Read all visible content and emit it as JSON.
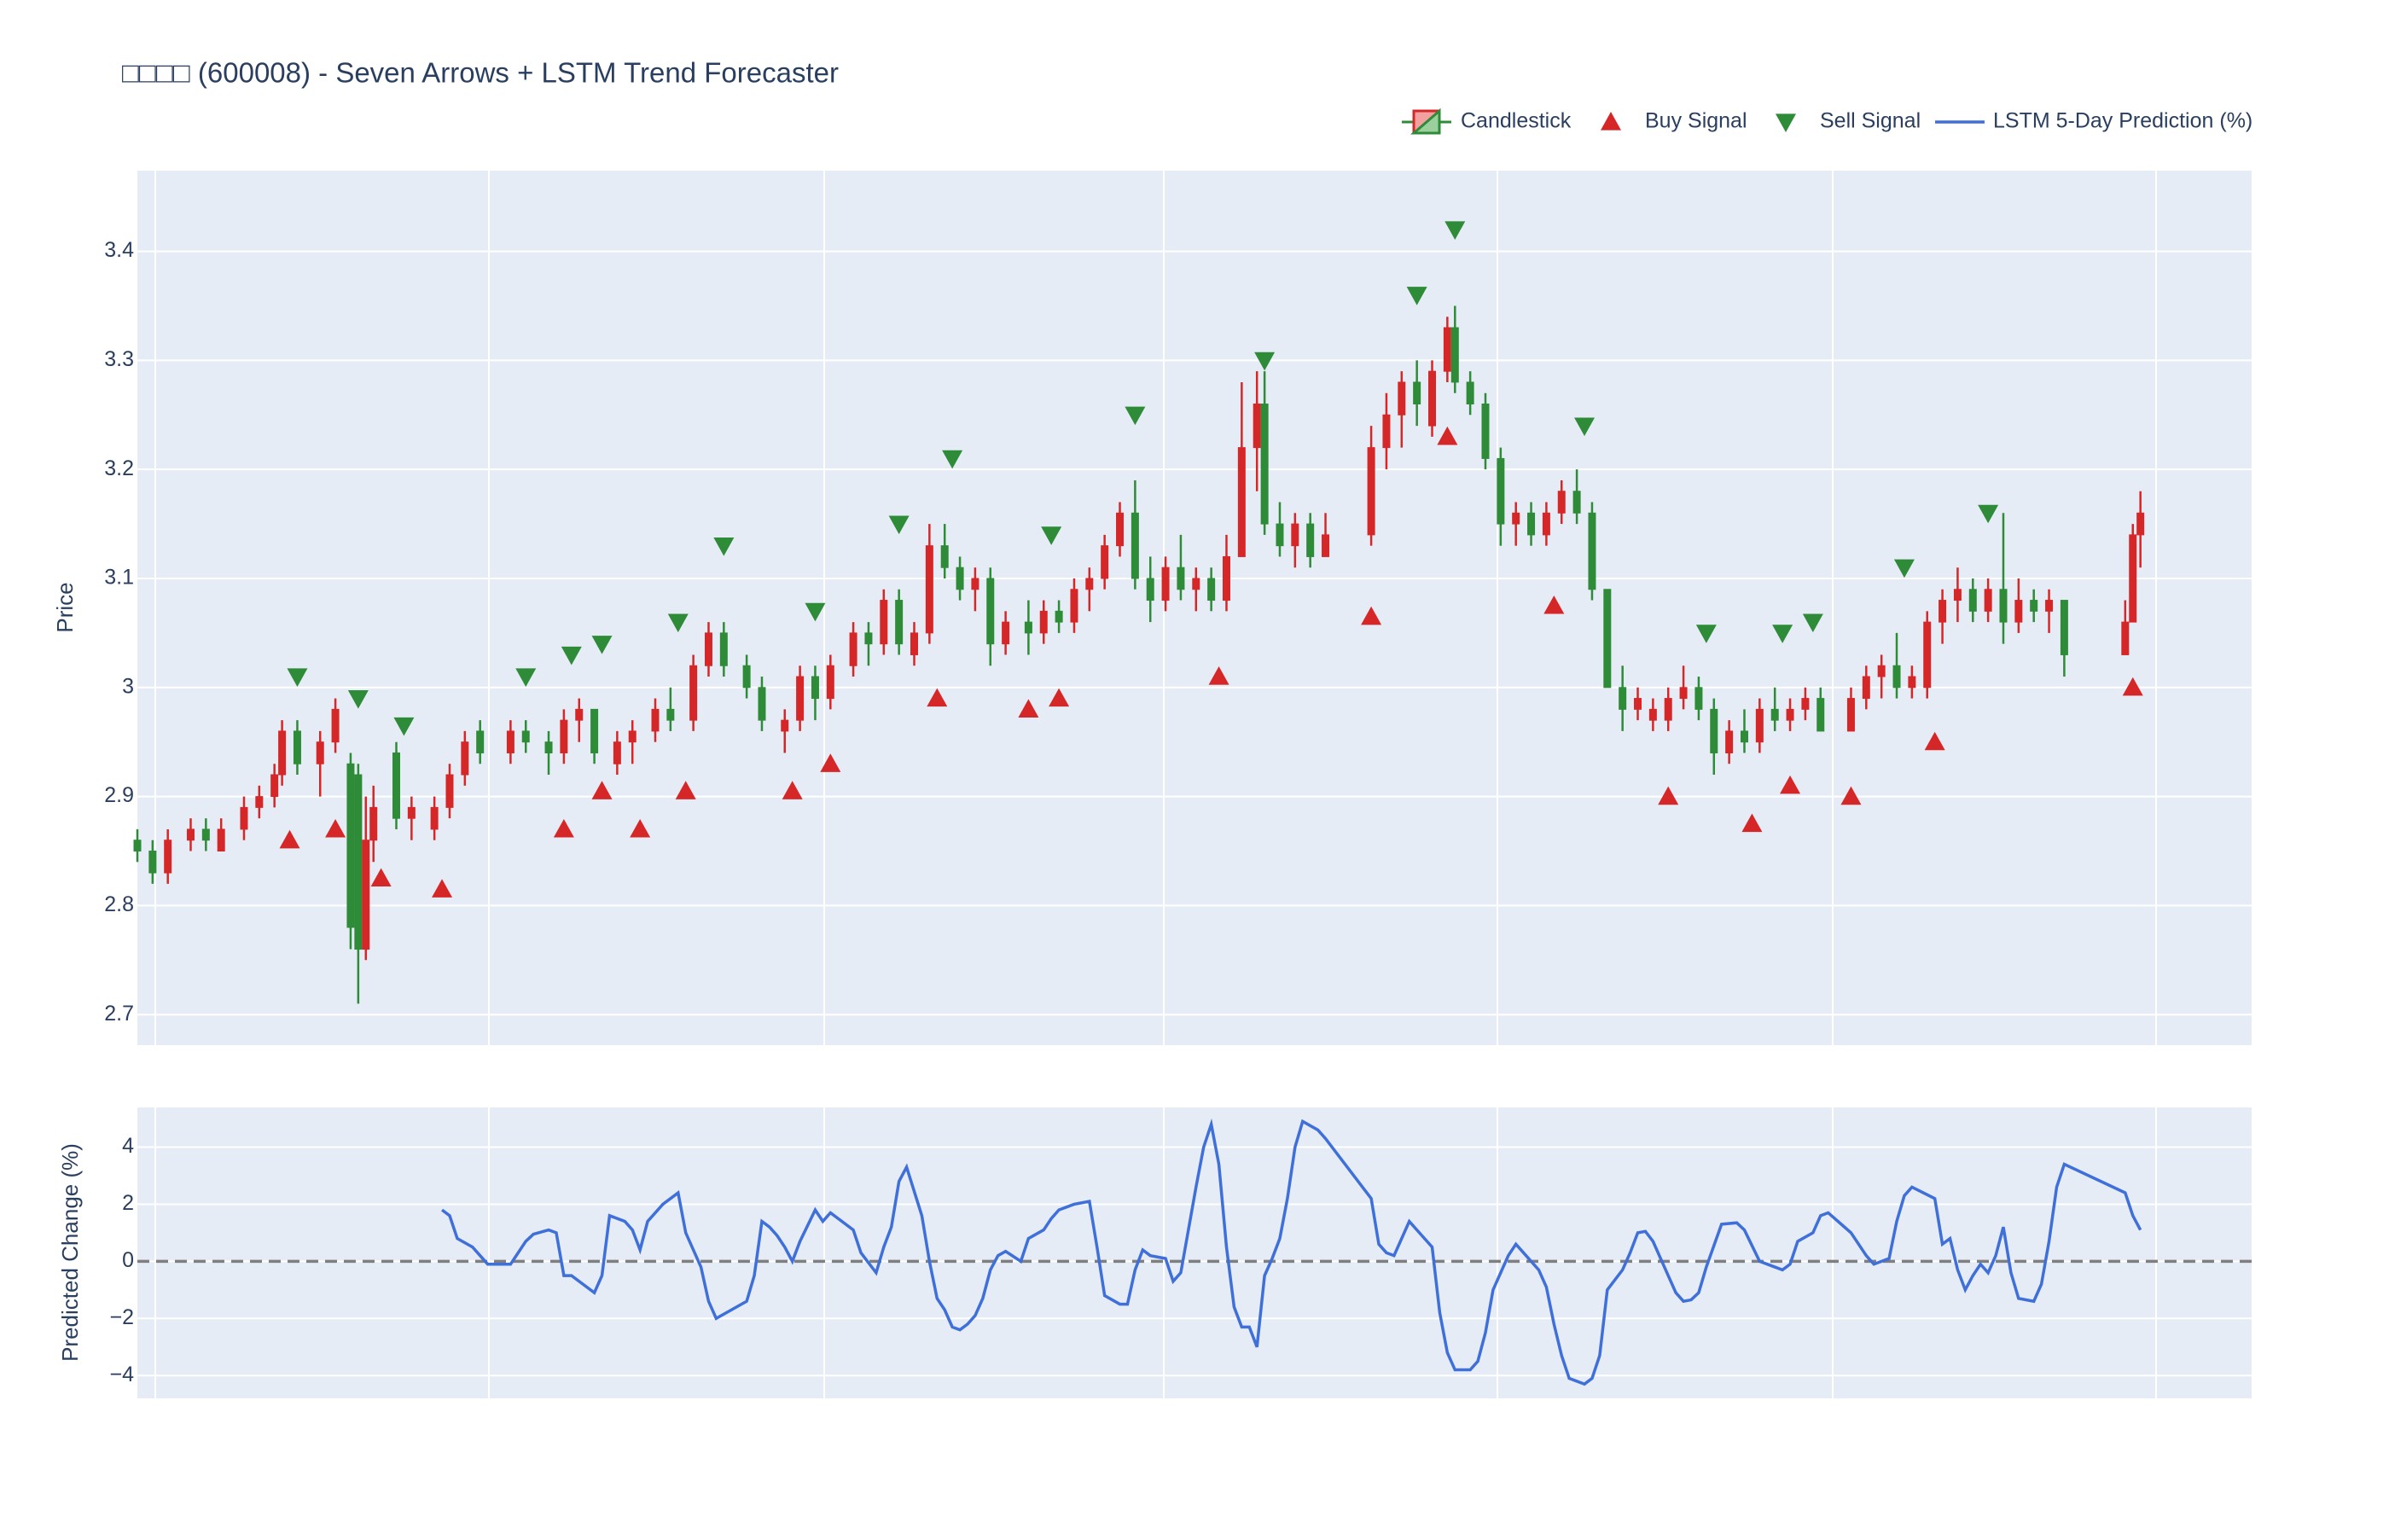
{
  "chart_data": [
    {
      "type": "candlestick",
      "title": "□□□□ (600008) - Seven Arrows + LSTM Trend Forecaster",
      "ylabel": "Price",
      "xlim": [
        0,
        277.6
      ],
      "ylim": [
        2.672,
        3.474
      ],
      "yticks": [
        2.7,
        2.8,
        2.9,
        3,
        3.1,
        3.2,
        3.3,
        3.4
      ],
      "grid": true,
      "legend": "top-right",
      "series": [
        {
          "name": "Candlestick",
          "type": "candlestick",
          "increasing_color": "#d62728",
          "decreasing_color": "#2e8b37",
          "x": [
            0,
            2,
            4,
            7,
            9,
            11,
            14,
            16,
            18,
            19,
            21,
            24,
            26,
            28,
            29,
            30,
            31,
            34,
            36,
            39,
            41,
            43,
            45,
            49,
            51,
            54,
            56,
            58,
            60,
            63,
            65,
            68,
            70,
            73,
            75,
            77,
            80,
            82,
            85,
            87,
            89,
            91,
            94,
            96,
            98,
            100,
            102,
            104,
            106,
            108,
            110,
            112,
            114,
            117,
            119,
            121,
            123,
            125,
            127,
            129,
            131,
            133,
            135,
            137,
            139,
            141,
            143,
            145,
            147,
            148,
            150,
            152,
            154,
            156,
            162,
            164,
            166,
            168,
            170,
            172,
            173,
            175,
            177,
            179,
            181,
            183,
            185,
            187,
            189,
            191,
            193,
            195,
            197,
            199,
            201,
            203,
            205,
            207,
            209,
            211,
            213,
            215,
            217,
            219,
            221,
            225,
            227,
            229,
            231,
            233,
            235,
            237,
            239,
            241,
            243,
            245,
            247,
            249,
            251,
            253,
            261,
            262,
            263
          ],
          "open": [
            2.86,
            2.85,
            2.83,
            2.86,
            2.87,
            2.85,
            2.87,
            2.89,
            2.9,
            2.92,
            2.96,
            2.93,
            2.95,
            2.93,
            2.92,
            2.76,
            2.86,
            2.94,
            2.88,
            2.87,
            2.89,
            2.92,
            2.96,
            2.94,
            2.96,
            2.95,
            2.94,
            2.97,
            2.98,
            2.93,
            2.95,
            2.96,
            2.98,
            2.97,
            3.02,
            3.05,
            3.02,
            3.0,
            2.96,
            2.97,
            3.01,
            2.99,
            3.02,
            3.05,
            3.04,
            3.08,
            3.03,
            3.05,
            3.13,
            3.11,
            3.09,
            3.1,
            3.04,
            3.06,
            3.05,
            3.07,
            3.06,
            3.09,
            3.1,
            3.13,
            3.16,
            3.1,
            3.08,
            3.11,
            3.09,
            3.1,
            3.08,
            3.12,
            3.22,
            3.26,
            3.15,
            3.13,
            3.15,
            3.12,
            3.14,
            3.22,
            3.25,
            3.28,
            3.24,
            3.29,
            3.33,
            3.28,
            3.26,
            3.21,
            3.15,
            3.16,
            3.14,
            3.16,
            3.18,
            3.16,
            3.09,
            3.0,
            2.98,
            2.97,
            2.97,
            2.99,
            3.0,
            2.98,
            2.94,
            2.96,
            2.95,
            2.98,
            2.97,
            2.98,
            2.99,
            2.96,
            2.99,
            3.01,
            3.02,
            3.0,
            3.0,
            3.06,
            3.08,
            3.09,
            3.07,
            3.09,
            3.06,
            3.08,
            3.07,
            3.08,
            3.03,
            3.06,
            3.14
          ],
          "high": [
            2.87,
            2.86,
            2.87,
            2.88,
            2.88,
            2.88,
            2.9,
            2.91,
            2.93,
            2.97,
            2.97,
            2.96,
            2.99,
            2.94,
            2.93,
            2.9,
            2.91,
            2.95,
            2.9,
            2.9,
            2.93,
            2.96,
            2.97,
            2.97,
            2.97,
            2.96,
            2.98,
            2.99,
            2.98,
            2.96,
            2.97,
            2.99,
            3.0,
            3.03,
            3.06,
            3.06,
            3.03,
            3.01,
            2.98,
            3.02,
            3.02,
            3.03,
            3.06,
            3.06,
            3.09,
            3.09,
            3.06,
            3.15,
            3.15,
            3.12,
            3.11,
            3.11,
            3.07,
            3.08,
            3.08,
            3.08,
            3.1,
            3.11,
            3.14,
            3.17,
            3.19,
            3.12,
            3.12,
            3.14,
            3.11,
            3.11,
            3.14,
            3.28,
            3.29,
            3.29,
            3.17,
            3.16,
            3.16,
            3.16,
            3.24,
            3.27,
            3.29,
            3.3,
            3.3,
            3.34,
            3.35,
            3.29,
            3.27,
            3.22,
            3.17,
            3.17,
            3.17,
            3.19,
            3.2,
            3.17,
            3.09,
            3.02,
            3.0,
            2.99,
            3.0,
            3.02,
            3.01,
            2.99,
            2.97,
            2.98,
            2.99,
            3.0,
            2.99,
            3.0,
            3.0,
            3.0,
            3.02,
            3.03,
            3.05,
            3.02,
            3.07,
            3.09,
            3.11,
            3.1,
            3.1,
            3.16,
            3.1,
            3.09,
            3.09,
            3.08,
            3.08,
            3.15,
            3.18
          ],
          "low": [
            2.84,
            2.82,
            2.82,
            2.85,
            2.85,
            2.85,
            2.86,
            2.88,
            2.89,
            2.91,
            2.92,
            2.9,
            2.94,
            2.76,
            2.71,
            2.75,
            2.84,
            2.87,
            2.86,
            2.86,
            2.88,
            2.91,
            2.93,
            2.93,
            2.94,
            2.92,
            2.93,
            2.95,
            2.93,
            2.92,
            2.93,
            2.95,
            2.96,
            2.96,
            3.01,
            3.01,
            2.99,
            2.96,
            2.94,
            2.96,
            2.97,
            2.98,
            3.01,
            3.02,
            3.03,
            3.03,
            3.02,
            3.04,
            3.1,
            3.08,
            3.07,
            3.02,
            3.03,
            3.03,
            3.04,
            3.05,
            3.05,
            3.07,
            3.09,
            3.12,
            3.09,
            3.06,
            3.07,
            3.08,
            3.07,
            3.07,
            3.07,
            3.12,
            3.18,
            3.14,
            3.12,
            3.11,
            3.11,
            3.12,
            3.13,
            3.2,
            3.22,
            3.24,
            3.23,
            3.28,
            3.27,
            3.25,
            3.2,
            3.13,
            3.13,
            3.13,
            3.13,
            3.15,
            3.15,
            3.08,
            3.0,
            2.96,
            2.97,
            2.96,
            2.96,
            2.98,
            2.97,
            2.92,
            2.93,
            2.94,
            2.94,
            2.96,
            2.96,
            2.97,
            2.96,
            2.96,
            2.98,
            2.99,
            2.99,
            2.99,
            2.99,
            3.04,
            3.06,
            3.06,
            3.06,
            3.04,
            3.05,
            3.06,
            3.05,
            3.01,
            3.03,
            3.06,
            3.11
          ],
          "close": [
            2.85,
            2.83,
            2.86,
            2.87,
            2.86,
            2.87,
            2.89,
            2.9,
            2.92,
            2.96,
            2.93,
            2.95,
            2.98,
            2.78,
            2.76,
            2.86,
            2.89,
            2.88,
            2.89,
            2.89,
            2.92,
            2.95,
            2.94,
            2.96,
            2.95,
            2.94,
            2.97,
            2.98,
            2.94,
            2.95,
            2.96,
            2.98,
            2.97,
            3.02,
            3.05,
            3.02,
            3.0,
            2.97,
            2.97,
            3.01,
            2.99,
            3.02,
            3.05,
            3.04,
            3.08,
            3.04,
            3.05,
            3.13,
            3.11,
            3.09,
            3.1,
            3.04,
            3.06,
            3.05,
            3.07,
            3.06,
            3.09,
            3.1,
            3.13,
            3.16,
            3.1,
            3.08,
            3.11,
            3.09,
            3.1,
            3.08,
            3.12,
            3.22,
            3.26,
            3.15,
            3.13,
            3.15,
            3.12,
            3.14,
            3.22,
            3.25,
            3.28,
            3.26,
            3.29,
            3.33,
            3.28,
            3.26,
            3.21,
            3.15,
            3.16,
            3.14,
            3.16,
            3.18,
            3.16,
            3.09,
            3.0,
            2.98,
            2.99,
            2.98,
            2.99,
            3.0,
            2.98,
            2.94,
            2.96,
            2.95,
            2.98,
            2.97,
            2.98,
            2.99,
            2.96,
            2.99,
            3.01,
            3.02,
            3.0,
            3.01,
            3.06,
            3.08,
            3.09,
            3.07,
            3.09,
            3.06,
            3.08,
            3.07,
            3.08,
            3.03,
            3.06,
            3.14,
            3.16
          ]
        },
        {
          "name": "Buy Signal",
          "type": "scatter",
          "marker": "triangle-up",
          "color": "#d62728",
          "x": [
            20,
            26,
            32,
            40,
            56,
            61,
            66,
            72,
            86,
            91,
            105,
            117,
            121,
            142,
            162,
            172,
            186,
            201,
            212,
            217,
            225,
            236,
            262
          ],
          "values": [
            2.86,
            2.87,
            2.825,
            2.815,
            2.87,
            2.905,
            2.87,
            2.905,
            2.905,
            2.93,
            2.99,
            2.98,
            2.99,
            3.01,
            3.065,
            3.23,
            3.075,
            2.9,
            2.875,
            2.91,
            2.9,
            2.95,
            3.0
          ]
        },
        {
          "name": "Sell Signal",
          "type": "scatter",
          "marker": "triangle-down",
          "color": "#2e8b37",
          "x": [
            21,
            29,
            35,
            51,
            57,
            61,
            71,
            77,
            89,
            100,
            107,
            120,
            131,
            148,
            168,
            173,
            190,
            206,
            216,
            220,
            232,
            243
          ],
          "values": [
            3.01,
            2.99,
            2.965,
            3.01,
            3.03,
            3.04,
            3.06,
            3.13,
            3.07,
            3.15,
            3.21,
            3.14,
            3.25,
            3.3,
            3.36,
            3.42,
            3.24,
            3.05,
            3.05,
            3.06,
            3.11,
            3.16
          ]
        }
      ]
    },
    {
      "type": "line",
      "ylabel": "Predicted Change (%)",
      "xlim": [
        0,
        277.6
      ],
      "ylim": [
        -4.8,
        5.39
      ],
      "yticks": [
        4,
        2,
        0,
        {
          "value": -2,
          "label": "−2"
        },
        {
          "value": -4,
          "label": "−4"
        }
      ],
      "grid": true,
      "hline": 0,
      "series": [
        {
          "name": "LSTM 5-Day Prediction (%)",
          "color": "#3f6fd9",
          "x": [
            40,
            41,
            42,
            44,
            46,
            49,
            51,
            52,
            54,
            55,
            56,
            57,
            60,
            61,
            62,
            64,
            65,
            66,
            67,
            69,
            71,
            72,
            74,
            75,
            76,
            78,
            80,
            81,
            82,
            83,
            84,
            85,
            86,
            87,
            89,
            90,
            91,
            93,
            94,
            95,
            97,
            98,
            99,
            100,
            101,
            103,
            104,
            105,
            106,
            107,
            108,
            109,
            110,
            111,
            112,
            113,
            114,
            116,
            117,
            119,
            120,
            121,
            123,
            125,
            126,
            127,
            129,
            130,
            131,
            132,
            133,
            135,
            136,
            137,
            138,
            139,
            140,
            141,
            142,
            143,
            144,
            145,
            146,
            147,
            148,
            149,
            150,
            151,
            152,
            153,
            155,
            156,
            162,
            163,
            164,
            165,
            167,
            169,
            170,
            171,
            172,
            173,
            175,
            176,
            177,
            178,
            179,
            180,
            181,
            182,
            184,
            185,
            186,
            187,
            188,
            190,
            191,
            192,
            193,
            195,
            196,
            197,
            198,
            199,
            200,
            202,
            203,
            204,
            205,
            206,
            208,
            210,
            211,
            213,
            215,
            216,
            217,
            218,
            220,
            221,
            222,
            225,
            227,
            228,
            230,
            231,
            232,
            233,
            236,
            237,
            238,
            239,
            240,
            241,
            242,
            243,
            244,
            245,
            246,
            247,
            249,
            250,
            251,
            252,
            253,
            261,
            262,
            263
          ],
          "values": [
            1.8,
            1.6,
            0.8,
            0.5,
            -0.1,
            -0.1,
            0.7,
            0.95,
            1.1,
            1.0,
            -0.5,
            -0.5,
            -1.1,
            -0.5,
            1.6,
            1.4,
            1.1,
            0.4,
            1.4,
            2.0,
            2.4,
            1.0,
            -0.2,
            -1.4,
            -2.0,
            -1.7,
            -1.4,
            -0.5,
            1.4,
            1.2,
            0.9,
            0.5,
            0.0,
            0.7,
            1.8,
            1.4,
            1.7,
            1.3,
            1.1,
            0.3,
            -0.4,
            0.5,
            1.2,
            2.8,
            3.3,
            1.6,
            0.0,
            -1.3,
            -1.7,
            -2.3,
            -2.4,
            -2.2,
            -1.9,
            -1.3,
            -0.3,
            0.2,
            0.35,
            0.0,
            0.8,
            1.1,
            1.5,
            1.8,
            2.0,
            2.1,
            0.5,
            -1.2,
            -1.5,
            -1.5,
            -0.3,
            0.4,
            0.2,
            0.1,
            -0.7,
            -0.4,
            1.1,
            2.6,
            4.0,
            4.8,
            3.4,
            0.5,
            -1.6,
            -2.3,
            -2.3,
            -3.0,
            -0.5,
            0.1,
            0.8,
            2.2,
            4.0,
            4.9,
            4.6,
            4.3,
            2.2,
            0.6,
            0.3,
            0.2,
            1.4,
            0.8,
            0.5,
            -1.8,
            -3.2,
            -3.8,
            -3.8,
            -3.5,
            -2.5,
            -1.0,
            -0.4,
            0.2,
            0.6,
            0.3,
            -0.3,
            -0.9,
            -2.2,
            -3.3,
            -4.1,
            -4.3,
            -4.1,
            -3.3,
            -1.0,
            -0.3,
            0.3,
            1.0,
            1.05,
            0.7,
            0.1,
            -1.1,
            -1.4,
            -1.35,
            -1.1,
            -0.2,
            1.3,
            1.35,
            1.1,
            0.0,
            -0.2,
            -0.3,
            -0.1,
            0.7,
            1.0,
            1.6,
            1.7,
            1.0,
            0.2,
            -0.1,
            0.1,
            1.4,
            2.3,
            2.6,
            2.2,
            0.6,
            0.8,
            -0.3,
            -1.0,
            -0.5,
            -0.1,
            -0.4,
            0.2,
            1.2,
            -0.4,
            -1.3,
            -1.4,
            -0.8,
            0.7,
            2.6,
            3.4,
            2.4,
            1.6,
            1.1
          ]
        }
      ]
    }
  ]
}
